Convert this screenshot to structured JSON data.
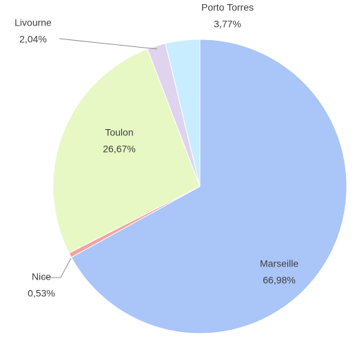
{
  "chart_data": {
    "type": "pie",
    "categories": [
      "Marseille",
      "Nice",
      "Toulon",
      "Livourne",
      "Porto Torres"
    ],
    "values": [
      66.98,
      0.53,
      26.67,
      2.04,
      3.77
    ],
    "value_labels": [
      "66,98%",
      "0,53%",
      "26,67%",
      "2,04%",
      "3,77%"
    ],
    "colors": [
      "#aac5f7",
      "#f3a3a3",
      "#e7f8c4",
      "#dfd3f0",
      "#c8edff"
    ]
  }
}
